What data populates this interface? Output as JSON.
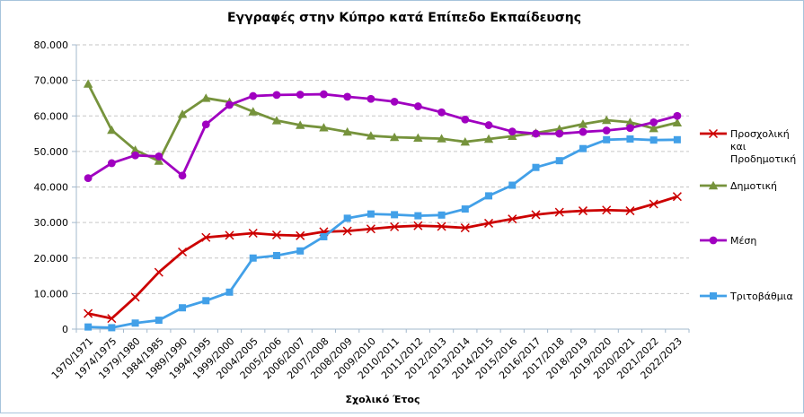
{
  "chart_data": {
    "type": "line",
    "title": "Εγγραφές στην Κύπρο κατά Επίπεδο Εκπαίδευσης",
    "xlabel": "Σχολικό Έτος",
    "ylabel": "",
    "ylim": [
      0,
      80000
    ],
    "ytick_interval": 10000,
    "ytick_labels": [
      "0",
      "10.000",
      "20.000",
      "30.000",
      "40.000",
      "50.000",
      "60.000",
      "70.000",
      "80.000"
    ],
    "grid": "horizontal-dashed",
    "legend_position": "right",
    "background_color": "#FFFFFF",
    "border_color": "#A7C4DC",
    "axis_color": "#A3B8CC",
    "gridline_color": "#C6C6C6",
    "categories": [
      "1970/1971",
      "1974/1975",
      "1979/1980",
      "1984/1985",
      "1989/1990",
      "1994/1995",
      "1999/2000",
      "2004/2005",
      "2005/2006",
      "2006/2007",
      "2007/2008",
      "2008/2009",
      "2009/2010",
      "2010/2011",
      "2011/2012",
      "2012/2013",
      "2013/2014",
      "2014/2015",
      "2015/2016",
      "2016/2017",
      "2017/2018",
      "2018/2019",
      "2019/2020",
      "2020/2021",
      "2021/2022",
      "2022/2023"
    ],
    "series": [
      {
        "name": "Προσχολική και Προδημοτική",
        "color": "#CC0000",
        "marker": "x",
        "values": [
          4400,
          3000,
          9000,
          16000,
          21700,
          25800,
          26400,
          27000,
          26500,
          26300,
          27400,
          27600,
          28200,
          28800,
          29100,
          28900,
          28500,
          29800,
          31000,
          32200,
          32900,
          33300,
          33500,
          33300,
          35200,
          37300
        ]
      },
      {
        "name": "Δημοτική",
        "color": "#76933C",
        "marker": "triangle",
        "values": [
          69000,
          56000,
          50400,
          47300,
          60500,
          65000,
          63900,
          61200,
          58700,
          57400,
          56700,
          55500,
          54400,
          54000,
          53800,
          53600,
          52700,
          53500,
          54300,
          55200,
          56300,
          57700,
          58800,
          58200,
          56500,
          58100
        ]
      },
      {
        "name": "Μέση",
        "color": "#A000C0",
        "marker": "circle",
        "values": [
          42500,
          46700,
          48900,
          48600,
          43200,
          57600,
          63100,
          65600,
          65900,
          66000,
          66100,
          65400,
          64800,
          64000,
          62700,
          61000,
          59000,
          57400,
          55600,
          55000,
          55000,
          55500,
          55900,
          56600,
          58200,
          60000
        ]
      },
      {
        "name": "Τριτοβάθμια",
        "color": "#42A0E8",
        "marker": "square",
        "values": [
          600,
          400,
          1700,
          2500,
          6000,
          8000,
          10400,
          20000,
          20700,
          22000,
          26000,
          31200,
          32400,
          32200,
          31900,
          32100,
          33800,
          37500,
          40500,
          45500,
          47400,
          50800,
          53300,
          53500,
          53200,
          53300
        ]
      }
    ]
  }
}
